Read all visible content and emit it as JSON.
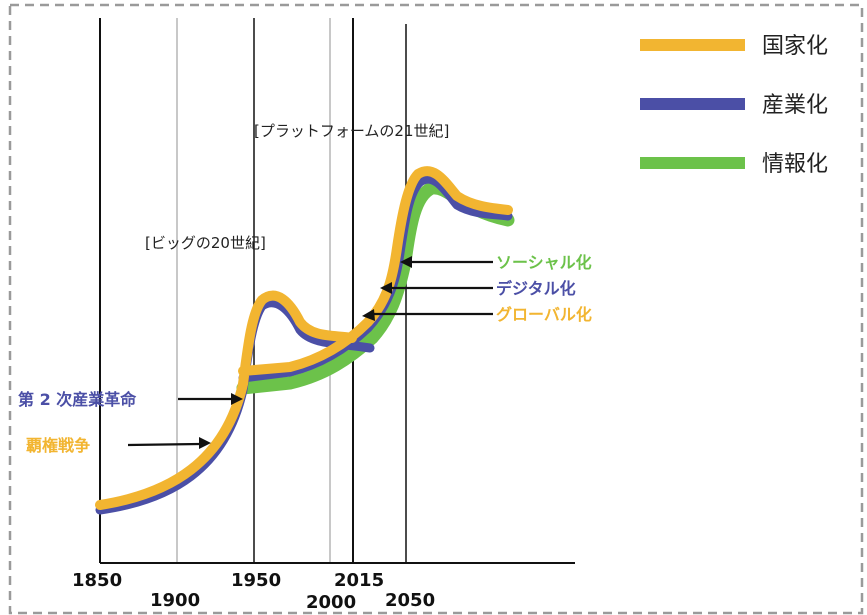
{
  "colors": {
    "nation": "#f2b531",
    "industry": "#4b4fa6",
    "info": "#6cc24a",
    "axis": "#111111",
    "gridlight": "#c8c8c8",
    "border": "#9a9a9a"
  },
  "legend": [
    {
      "label": "国家化",
      "color": "#f2b531"
    },
    {
      "label": "産業化",
      "color": "#4b4fa6"
    },
    {
      "label": "情報化",
      "color": "#6cc24a"
    }
  ],
  "axis": {
    "ticks_top": [
      "1850",
      "1950",
      "2015"
    ],
    "ticks_bottom": [
      "1900",
      "2000",
      "2050"
    ]
  },
  "eras": {
    "twentieth": "[ビッグの20世紀]",
    "platform": "[プラットフォームの21世紀]"
  },
  "annotations": {
    "social": "ソーシャル化",
    "digital": "デジタル化",
    "global": "グローバル化",
    "second_ir": "第 2 次産業革命",
    "hegemony": "覇権戦争"
  }
}
